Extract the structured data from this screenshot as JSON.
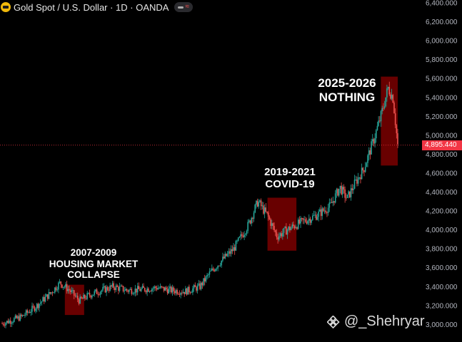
{
  "header": {
    "symbol_title": "Gold Spot / U.S. Dollar · 1D · OANDA"
  },
  "annotations": {
    "housing": "2007-2009\nHOUSING MARKET\nCOLLAPSE",
    "covid": "2019-2021\nCOVID-19",
    "nothing": "2025-2026\nNOTHING"
  },
  "watermark": {
    "text": "@_Shehryar"
  },
  "colors": {
    "up": "#26a69a",
    "down": "#ef5350",
    "highlight": "#8b0000",
    "price_line": "#f23645"
  },
  "chart_data": {
    "type": "candlestick",
    "title": "Gold Spot / U.S. Dollar · 1D · OANDA",
    "ylim": [
      2950,
      6400
    ],
    "y_ticks": [
      "3,000.000",
      "3,200.000",
      "3,400.000",
      "3,600.000",
      "3,800.000",
      "4,000.000",
      "4,200.000",
      "4,400.000",
      "4,600.000",
      "4,800.000",
      "5,000.000",
      "5,200.000",
      "5,400.000",
      "5,600.000",
      "5,800.000",
      "6,000.000",
      "6,200.000",
      "6,400.000"
    ],
    "last_price": 4895.44,
    "last_price_label": "4,895.440",
    "price_points": [
      {
        "i": 0,
        "v": 3010
      },
      {
        "i": 8,
        "v": 3080
      },
      {
        "i": 14,
        "v": 3190
      },
      {
        "i": 20,
        "v": 3330
      },
      {
        "i": 24,
        "v": 3440
      },
      {
        "i": 28,
        "v": 3360
      },
      {
        "i": 32,
        "v": 3250
      },
      {
        "i": 36,
        "v": 3310
      },
      {
        "i": 40,
        "v": 3350
      },
      {
        "i": 46,
        "v": 3400
      },
      {
        "i": 52,
        "v": 3360
      },
      {
        "i": 58,
        "v": 3370
      },
      {
        "i": 64,
        "v": 3390
      },
      {
        "i": 70,
        "v": 3360
      },
      {
        "i": 76,
        "v": 3350
      },
      {
        "i": 82,
        "v": 3400
      },
      {
        "i": 86,
        "v": 3540
      },
      {
        "i": 90,
        "v": 3650
      },
      {
        "i": 96,
        "v": 3800
      },
      {
        "i": 102,
        "v": 4050
      },
      {
        "i": 106,
        "v": 4300
      },
      {
        "i": 110,
        "v": 4150
      },
      {
        "i": 114,
        "v": 3930
      },
      {
        "i": 118,
        "v": 4000
      },
      {
        "i": 124,
        "v": 4080
      },
      {
        "i": 130,
        "v": 4150
      },
      {
        "i": 136,
        "v": 4250
      },
      {
        "i": 140,
        "v": 4450
      },
      {
        "i": 143,
        "v": 4330
      },
      {
        "i": 146,
        "v": 4480
      },
      {
        "i": 150,
        "v": 4650
      },
      {
        "i": 154,
        "v": 4950
      },
      {
        "i": 157,
        "v": 5200
      },
      {
        "i": 160,
        "v": 5500
      },
      {
        "i": 162,
        "v": 5400
      },
      {
        "i": 164,
        "v": 4895
      }
    ],
    "highlight_boxes": [
      {
        "label": "2007-2009 HOUSING MARKET COLLAPSE",
        "i_start": 26,
        "i_end": 34,
        "low": 3100,
        "high": 3420
      },
      {
        "label": "2019-2021 COVID-19",
        "i_start": 110,
        "i_end": 122,
        "low": 3780,
        "high": 4340
      },
      {
        "label": "2025-2026 NOTHING",
        "i_start": 157,
        "i_end": 164,
        "low": 4680,
        "high": 5620
      }
    ]
  }
}
